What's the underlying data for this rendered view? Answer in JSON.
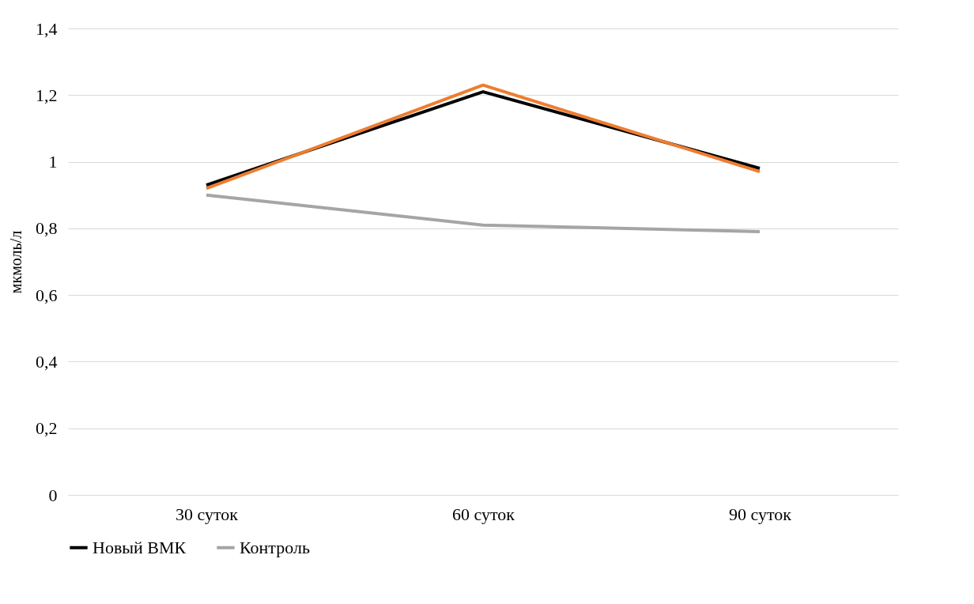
{
  "chart_data": {
    "type": "line",
    "ylabel": "мкмоль/л",
    "categories": [
      "30 суток",
      "60 суток",
      "90 суток"
    ],
    "series": [
      {
        "name": "Новый ВМК",
        "color": "#000000",
        "values": [
          0.93,
          1.21,
          0.98
        ]
      },
      {
        "color": "#ed7d31",
        "values": [
          0.92,
          1.23,
          0.97
        ]
      },
      {
        "name": "Контроль",
        "color": "#a5a5a5",
        "values": [
          0.9,
          0.81,
          0.79
        ]
      }
    ],
    "ylim": [
      0,
      1.4
    ],
    "yticks": [
      {
        "value": 0,
        "label": "0"
      },
      {
        "value": 0.2,
        "label": "0,2"
      },
      {
        "value": 0.4,
        "label": "0,4"
      },
      {
        "value": 0.6,
        "label": "0,6"
      },
      {
        "value": 0.8,
        "label": "0,8"
      },
      {
        "value": 1,
        "label": "1"
      },
      {
        "value": 1.2,
        "label": "1,2"
      },
      {
        "value": 1.4,
        "label": "1,4"
      }
    ],
    "grid": "y",
    "legend": "bottom",
    "marker": "none",
    "line_style": "solid"
  }
}
